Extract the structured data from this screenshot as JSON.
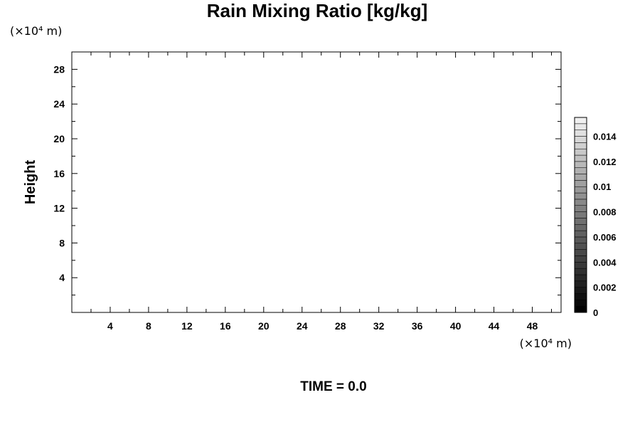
{
  "chart_data": {
    "type": "heatmap",
    "title": "Rain Mixing Ratio [kg/kg]",
    "xlabel": "",
    "ylabel": "Height",
    "x_unit": "(×10⁴ m)",
    "y_unit": "(×10⁴ m)",
    "xlim": [
      0,
      51
    ],
    "ylim": [
      0,
      30
    ],
    "x_ticks": [
      4,
      8,
      12,
      16,
      20,
      24,
      28,
      32,
      36,
      40,
      44,
      48
    ],
    "y_ticks": [
      4,
      8,
      12,
      16,
      20,
      24,
      28
    ],
    "grid": false,
    "values": [],
    "colorbar": {
      "min": 0,
      "max": 0.0155,
      "levels": 31,
      "ticks": [
        "0",
        "0.002",
        "0.004",
        "0.006",
        "0.008",
        "0.01",
        "0.012",
        "0.014"
      ],
      "color_low": "#000000",
      "color_high": "#f0f0f0"
    }
  },
  "footer": {
    "time_label": "TIME = 0.0"
  }
}
